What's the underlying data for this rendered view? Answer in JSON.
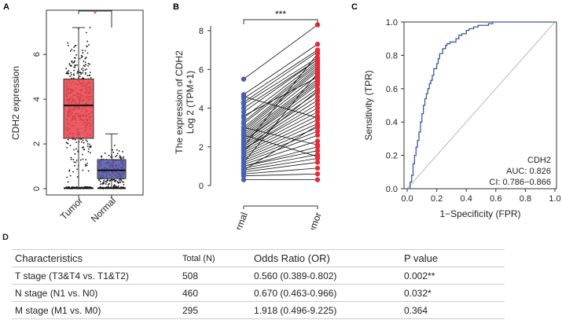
{
  "chart_data": [
    {
      "panel": "A",
      "type": "boxplot",
      "title": "",
      "ylabel": "CDH2 expression",
      "xlabel": "",
      "ylim": [
        0,
        7.8
      ],
      "yticks": [
        0,
        2,
        4,
        6
      ],
      "categories": [
        "Tumor",
        "Normal"
      ],
      "colors": [
        "#e8464f",
        "#5a59a8"
      ],
      "boxes": [
        {
          "name": "Tumor",
          "min": 0,
          "q1": 2.25,
          "median": 3.72,
          "q3": 4.9,
          "max": 7.2,
          "n_points": 520
        },
        {
          "name": "Normal",
          "min": 0,
          "q1": 0.45,
          "median": 0.82,
          "q3": 1.3,
          "max": 2.45,
          "n_points": 300
        }
      ],
      "significance": "*",
      "significance_color": "#e8464f"
    },
    {
      "panel": "B",
      "type": "paired-dot",
      "ylabel_line1": "The expression of CDH2",
      "ylabel_line2": "Log 2 (TPM+1)",
      "ylim": [
        0,
        8.5
      ],
      "yticks": [
        0,
        2,
        4,
        6,
        8
      ],
      "categories": [
        "Normal",
        "Tumor"
      ],
      "colors": [
        "#4a5fb0",
        "#e52d3a"
      ],
      "significance": "***",
      "pairs": [
        [
          5.5,
          8.3
        ],
        [
          4.7,
          7.3
        ],
        [
          4.5,
          7.0
        ],
        [
          4.3,
          6.9
        ],
        [
          4.2,
          6.6
        ],
        [
          4.0,
          6.5
        ],
        [
          3.8,
          6.5
        ],
        [
          3.5,
          6.4
        ],
        [
          3.3,
          6.3
        ],
        [
          3.2,
          6.2
        ],
        [
          3.0,
          6.1
        ],
        [
          2.9,
          6.0
        ],
        [
          2.8,
          5.9
        ],
        [
          2.7,
          5.7
        ],
        [
          2.6,
          5.5
        ],
        [
          2.5,
          5.4
        ],
        [
          2.4,
          5.3
        ],
        [
          2.3,
          5.2
        ],
        [
          2.3,
          5.0
        ],
        [
          2.2,
          4.8
        ],
        [
          2.1,
          4.6
        ],
        [
          2.0,
          4.4
        ],
        [
          1.9,
          4.2
        ],
        [
          1.9,
          4.0
        ],
        [
          1.8,
          3.8
        ],
        [
          1.7,
          3.6
        ],
        [
          1.6,
          3.4
        ],
        [
          1.5,
          3.2
        ],
        [
          1.4,
          3.0
        ],
        [
          1.3,
          2.8
        ],
        [
          1.2,
          2.6
        ],
        [
          1.1,
          2.3
        ],
        [
          1.0,
          2.0
        ],
        [
          1.0,
          1.8
        ],
        [
          0.9,
          1.6
        ],
        [
          0.8,
          1.4
        ],
        [
          0.7,
          1.2
        ],
        [
          0.6,
          0.9
        ],
        [
          0.5,
          0.6
        ],
        [
          0.3,
          0.3
        ],
        [
          3.6,
          5.6
        ],
        [
          2.0,
          6.8
        ],
        [
          1.2,
          5.8
        ],
        [
          3.0,
          2.1
        ],
        [
          2.6,
          1.5
        ],
        [
          4.6,
          3.5
        ],
        [
          1.8,
          4.9
        ],
        [
          0.8,
          3.1
        ]
      ]
    },
    {
      "panel": "C",
      "type": "line",
      "xlabel": "1−Specificity (FPR)",
      "ylabel": "Sensitivity (TPR)",
      "xlim": [
        0,
        1
      ],
      "ylim": [
        0,
        1
      ],
      "xticks": [
        "0.0",
        "0.2",
        "0.4",
        "0.6",
        "0.8",
        "1.0"
      ],
      "yticks": [
        "0.0",
        "0.2",
        "0.4",
        "0.6",
        "0.8",
        "1.0"
      ],
      "line_color": "#3a57a7",
      "diagonal_color": "#bbbbbb",
      "series": [
        {
          "name": "CDH2",
          "x": [
            0.0,
            0.02,
            0.03,
            0.04,
            0.05,
            0.06,
            0.07,
            0.08,
            0.09,
            0.1,
            0.11,
            0.12,
            0.13,
            0.14,
            0.15,
            0.16,
            0.17,
            0.18,
            0.2,
            0.21,
            0.22,
            0.24,
            0.26,
            0.27,
            0.29,
            0.31,
            0.33,
            0.35,
            0.37,
            0.4,
            0.42,
            0.45,
            0.48,
            0.52,
            0.55,
            0.58,
            0.62,
            0.7,
            0.8,
            0.9,
            1.0
          ],
          "y": [
            0.0,
            0.0,
            0.04,
            0.08,
            0.15,
            0.2,
            0.25,
            0.29,
            0.34,
            0.4,
            0.45,
            0.5,
            0.54,
            0.57,
            0.6,
            0.63,
            0.65,
            0.68,
            0.72,
            0.75,
            0.78,
            0.81,
            0.84,
            0.86,
            0.87,
            0.88,
            0.88,
            0.9,
            0.92,
            0.93,
            0.95,
            0.96,
            0.97,
            0.98,
            0.98,
            0.99,
            1.0,
            1.0,
            1.0,
            1.0,
            1.0
          ]
        }
      ],
      "annotation": [
        "CDH2",
        "AUC: 0.826",
        "CI: 0.786−0.866"
      ]
    }
  ],
  "panels": {
    "a": {
      "letter": "A"
    },
    "b": {
      "letter": "B"
    },
    "c": {
      "letter": "C"
    },
    "d": {
      "letter": "D"
    }
  },
  "table": {
    "headers": [
      "Characteristics",
      "Total (N)",
      "Odds Ratio (OR)",
      "P value"
    ],
    "rows": [
      [
        "T stage (T3&T4 vs. T1&T2)",
        "508",
        "0.560 (0.389-0.802)",
        "0.002**"
      ],
      [
        "N stage (N1 vs. N0)",
        "460",
        "0.670 (0.463-0.966)",
        "0.032*"
      ],
      [
        "M stage (M1 vs. M0)",
        "295",
        "1.918 (0.496-9.225)",
        "0.364"
      ]
    ]
  }
}
